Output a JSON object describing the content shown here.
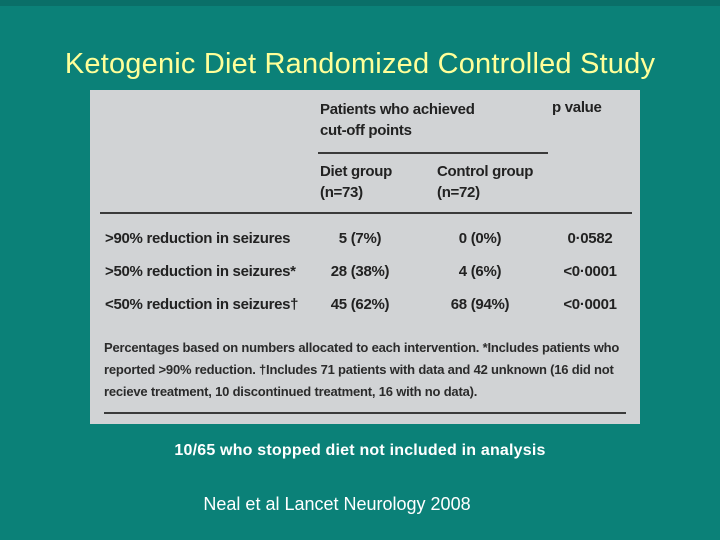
{
  "slide": {
    "title": "Ketogenic Diet Randomized Controlled Study",
    "caption": "10/65 who stopped diet not included in analysis",
    "source": "Neal et al Lancet Neurology 2008"
  },
  "table": {
    "span_header": "Patients who achieved cut-off points",
    "p_value_header": "p value",
    "diet_group_header": "Diet group (n=73)",
    "control_group_header": "Control group (n=72)",
    "rows": [
      {
        "label": ">90% reduction in seizures",
        "diet": "5 (7%)",
        "control": "0 (0%)",
        "p_value": "0·0582"
      },
      {
        "label": ">50% reduction in seizures*",
        "diet": "28 (38%)",
        "control": "4 (6%)",
        "p_value": "<0·0001"
      },
      {
        "label": "<50% reduction in seizures†",
        "diet": "45 (62%)",
        "control": "68 (94%)",
        "p_value": "<0·0001"
      }
    ],
    "footnote": "Percentages based on numbers allocated to each intervention. *Includes patients who reported >90% reduction. †Includes 71 patients with data and 42 unknown (16 did not recieve treatment, 10 discontinued treatment, 16 with no data)."
  },
  "colors": {
    "background": "#0b8178",
    "table_background": "#d1d3d5",
    "title_text": "#ffff99",
    "body_text": "#ffffff"
  }
}
